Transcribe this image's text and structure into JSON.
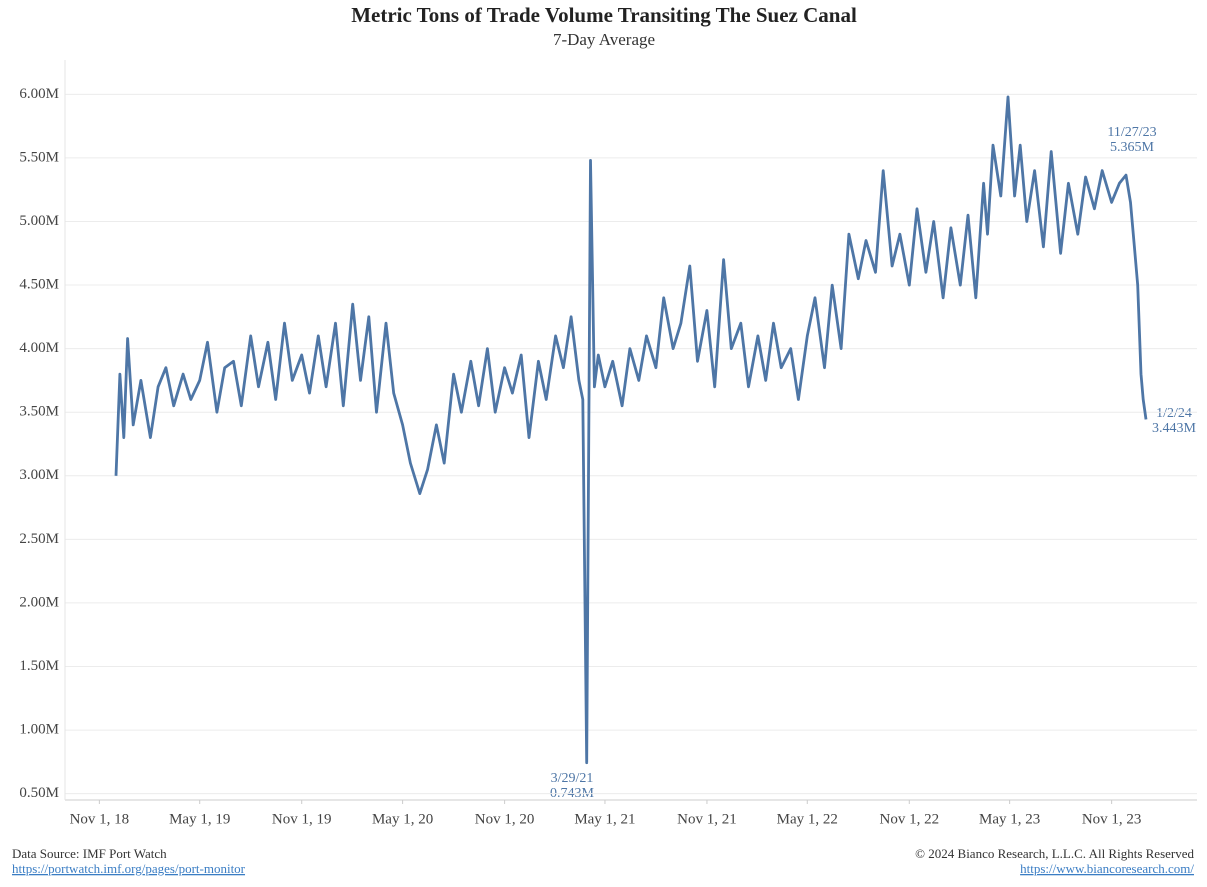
{
  "chart_data": {
    "type": "line",
    "title": "Metric Tons of Trade Volume Transiting The Suez Canal",
    "subtitle": "7-Day Average",
    "color": "#4e76a6",
    "grid": true,
    "ylim": [
      0.45,
      6.27
    ],
    "yticks": [
      {
        "value": 0.5,
        "label": "0.50M"
      },
      {
        "value": 1,
        "label": "1.00M"
      },
      {
        "value": 1.5,
        "label": "1.50M"
      },
      {
        "value": 2,
        "label": "2.00M"
      },
      {
        "value": 2.5,
        "label": "2.50M"
      },
      {
        "value": 3,
        "label": "3.00M"
      },
      {
        "value": 3.5,
        "label": "3.50M"
      },
      {
        "value": 4,
        "label": "4.00M"
      },
      {
        "value": 4.5,
        "label": "4.50M"
      },
      {
        "value": 5,
        "label": "5.00M"
      },
      {
        "value": 5.5,
        "label": "5.50M"
      },
      {
        "value": 6,
        "label": "6.00M"
      }
    ],
    "xlim": [
      "2018-08-31",
      "2024-04-03"
    ],
    "xticks": [
      {
        "value": "2018-11-01",
        "label": "Nov 1, 18"
      },
      {
        "value": "2019-05-01",
        "label": "May 1, 19"
      },
      {
        "value": "2019-11-01",
        "label": "Nov 1, 19"
      },
      {
        "value": "2020-05-01",
        "label": "May 1, 20"
      },
      {
        "value": "2020-11-01",
        "label": "Nov 1, 20"
      },
      {
        "value": "2021-05-01",
        "label": "May 1, 21"
      },
      {
        "value": "2021-11-01",
        "label": "Nov 1, 21"
      },
      {
        "value": "2022-05-01",
        "label": "May 1, 22"
      },
      {
        "value": "2022-11-01",
        "label": "Nov 1, 22"
      },
      {
        "value": "2023-05-01",
        "label": "May 1, 23"
      },
      {
        "value": "2023-11-01",
        "label": "Nov 1, 23"
      }
    ],
    "x": [
      "2018-12-01",
      "2018-12-08",
      "2018-12-15",
      "2018-12-22",
      "2019-01-01",
      "2019-01-15",
      "2019-02-01",
      "2019-02-15",
      "2019-03-01",
      "2019-03-15",
      "2019-04-01",
      "2019-04-15",
      "2019-05-01",
      "2019-05-15",
      "2019-06-01",
      "2019-06-15",
      "2019-07-01",
      "2019-07-15",
      "2019-08-01",
      "2019-08-15",
      "2019-09-01",
      "2019-09-15",
      "2019-10-01",
      "2019-10-15",
      "2019-11-01",
      "2019-11-15",
      "2019-12-01",
      "2019-12-15",
      "2020-01-01",
      "2020-01-15",
      "2020-02-01",
      "2020-02-15",
      "2020-03-01",
      "2020-03-15",
      "2020-04-01",
      "2020-04-15",
      "2020-05-01",
      "2020-05-15",
      "2020-06-01",
      "2020-06-15",
      "2020-07-01",
      "2020-07-15",
      "2020-08-01",
      "2020-08-15",
      "2020-09-01",
      "2020-09-15",
      "2020-10-01",
      "2020-10-15",
      "2020-11-01",
      "2020-11-15",
      "2020-12-01",
      "2020-12-15",
      "2021-01-01",
      "2021-01-15",
      "2021-02-01",
      "2021-02-15",
      "2021-03-01",
      "2021-03-15",
      "2021-03-22",
      "2021-03-29",
      "2021-04-05",
      "2021-04-12",
      "2021-04-19",
      "2021-05-01",
      "2021-05-15",
      "2021-06-01",
      "2021-06-15",
      "2021-07-01",
      "2021-07-15",
      "2021-08-01",
      "2021-08-15",
      "2021-09-01",
      "2021-09-15",
      "2021-10-01",
      "2021-10-15",
      "2021-11-01",
      "2021-11-15",
      "2021-12-01",
      "2021-12-15",
      "2022-01-01",
      "2022-01-15",
      "2022-02-01",
      "2022-02-15",
      "2022-03-01",
      "2022-03-15",
      "2022-04-01",
      "2022-04-15",
      "2022-05-01",
      "2022-05-15",
      "2022-06-01",
      "2022-06-15",
      "2022-07-01",
      "2022-07-15",
      "2022-08-01",
      "2022-08-15",
      "2022-09-01",
      "2022-09-15",
      "2022-10-01",
      "2022-10-15",
      "2022-11-01",
      "2022-11-15",
      "2022-12-01",
      "2022-12-15",
      "2023-01-01",
      "2023-01-15",
      "2023-02-01",
      "2023-02-15",
      "2023-03-01",
      "2023-03-15",
      "2023-03-22",
      "2023-04-01",
      "2023-04-15",
      "2023-04-28",
      "2023-05-10",
      "2023-05-20",
      "2023-06-01",
      "2023-06-15",
      "2023-07-01",
      "2023-07-15",
      "2023-08-01",
      "2023-08-15",
      "2023-09-01",
      "2023-09-15",
      "2023-10-01",
      "2023-10-15",
      "2023-11-01",
      "2023-11-15",
      "2023-11-27",
      "2023-12-05",
      "2023-12-12",
      "2023-12-18",
      "2023-12-24",
      "2023-12-28",
      "2024-01-02"
    ],
    "values": [
      3.0,
      3.8,
      3.3,
      4.08,
      3.4,
      3.75,
      3.3,
      3.7,
      3.85,
      3.55,
      3.8,
      3.6,
      3.75,
      4.05,
      3.5,
      3.85,
      3.9,
      3.55,
      4.1,
      3.7,
      4.05,
      3.6,
      4.2,
      3.75,
      3.95,
      3.65,
      4.1,
      3.7,
      4.2,
      3.55,
      4.35,
      3.75,
      4.25,
      3.5,
      4.2,
      3.65,
      3.4,
      3.1,
      2.86,
      3.05,
      3.4,
      3.1,
      3.8,
      3.5,
      3.9,
      3.55,
      4.0,
      3.5,
      3.85,
      3.65,
      3.95,
      3.3,
      3.9,
      3.6,
      4.1,
      3.85,
      4.25,
      3.75,
      3.6,
      0.743,
      5.48,
      3.7,
      3.95,
      3.7,
      3.9,
      3.55,
      4.0,
      3.75,
      4.1,
      3.85,
      4.4,
      4.0,
      4.2,
      4.65,
      3.9,
      4.3,
      3.7,
      4.7,
      4.0,
      4.2,
      3.7,
      4.1,
      3.75,
      4.2,
      3.85,
      4.0,
      3.6,
      4.1,
      4.4,
      3.85,
      4.5,
      4.0,
      4.9,
      4.55,
      4.85,
      4.6,
      5.4,
      4.65,
      4.9,
      4.5,
      5.1,
      4.6,
      5.0,
      4.4,
      4.95,
      4.5,
      5.05,
      4.4,
      5.3,
      4.9,
      5.6,
      5.2,
      5.98,
      5.2,
      5.6,
      5.0,
      5.4,
      4.8,
      5.55,
      4.75,
      5.3,
      4.9,
      5.35,
      5.1,
      5.4,
      5.15,
      5.3,
      5.365,
      5.15,
      4.8,
      4.5,
      3.8,
      3.6,
      3.443
    ],
    "annotations": [
      {
        "date": "3/29/21",
        "label": "0.743M"
      },
      {
        "date": "11/27/23",
        "label": "5.365M"
      },
      {
        "date": "1/2/24",
        "label": "3.443M"
      }
    ]
  },
  "footer": {
    "source": "Data Source: IMF Port Watch",
    "source_url": "https://portwatch.imf.org/pages/port-monitor",
    "copyright": "© 2024 Bianco Research, L.L.C. All Rights Reserved",
    "site_url": "https://www.biancoresearch.com/"
  }
}
